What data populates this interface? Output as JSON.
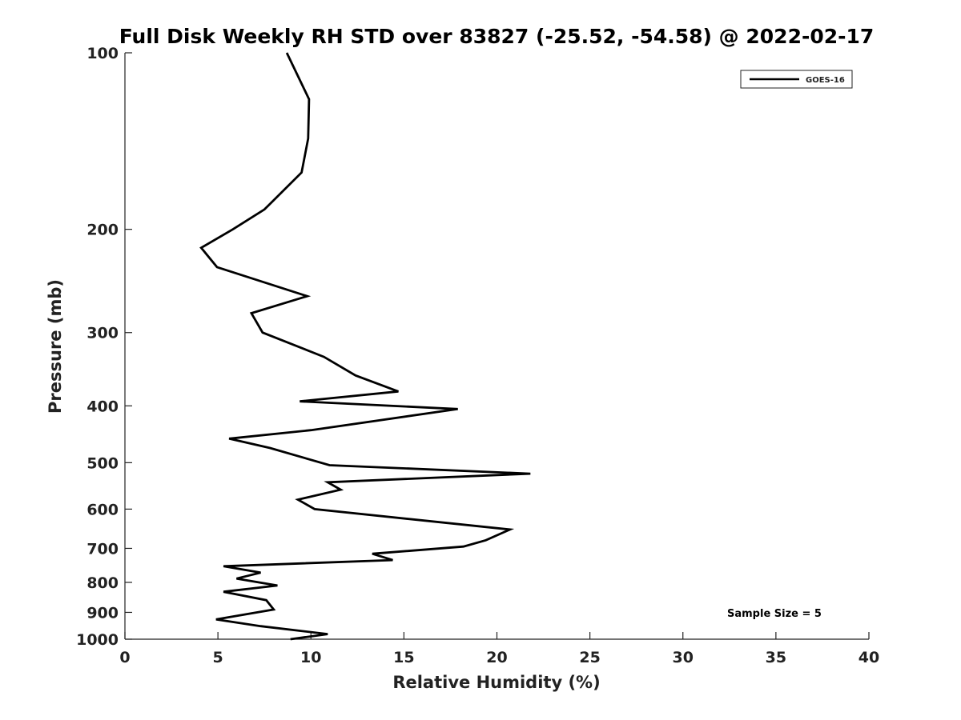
{
  "chart_data": {
    "type": "line",
    "title": "Full Disk Weekly RH STD over 83827 (-25.52, -54.58) @ 2022-02-17",
    "xlabel": "Relative Humidity (%)",
    "ylabel": "Pressure (mb)",
    "xlim": [
      0,
      40
    ],
    "ylim": [
      100,
      1000
    ],
    "yscale": "log",
    "y_reversed": true,
    "xticks": [
      0,
      5,
      10,
      15,
      20,
      25,
      30,
      35,
      40
    ],
    "xtick_labels": [
      "0",
      "5",
      "10",
      "15",
      "20",
      "25",
      "30",
      "35",
      "40"
    ],
    "yticks": [
      100,
      200,
      300,
      400,
      500,
      600,
      700,
      800,
      900,
      1000
    ],
    "ytick_labels": [
      "100",
      "200",
      "300",
      "400",
      "500",
      "600",
      "700",
      "800",
      "900",
      "1000"
    ],
    "grid": false,
    "legend_position": "top-right",
    "line_color": "#000000",
    "series": [
      {
        "name": "GOES-16",
        "x": [
          8.7,
          9.9,
          9.85,
          9.5,
          7.5,
          5.8,
          4.1,
          4.95,
          9.8,
          6.8,
          7.4,
          10.7,
          12.4,
          14.7,
          9.4,
          17.9,
          10.0,
          5.6,
          7.8,
          11.0,
          21.8,
          10.9,
          11.6,
          9.3,
          10.2,
          20.7,
          19.4,
          18.2,
          13.3,
          14.4,
          5.3,
          7.3,
          6.0,
          8.2,
          5.3,
          7.6,
          8.0,
          4.9,
          7.3,
          10.9,
          8.9
        ],
        "y": [
          100,
          120,
          140,
          160,
          185,
          200,
          215,
          232,
          260,
          278,
          300,
          330,
          355,
          378,
          393,
          405,
          440,
          455,
          472,
          505,
          522,
          540,
          556,
          578,
          600,
          650,
          678,
          695,
          715,
          733,
          751,
          770,
          788,
          810,
          830,
          858,
          890,
          925,
          950,
          980,
          1000
        ]
      }
    ],
    "annotations": [
      "Sample Size = 5"
    ]
  }
}
